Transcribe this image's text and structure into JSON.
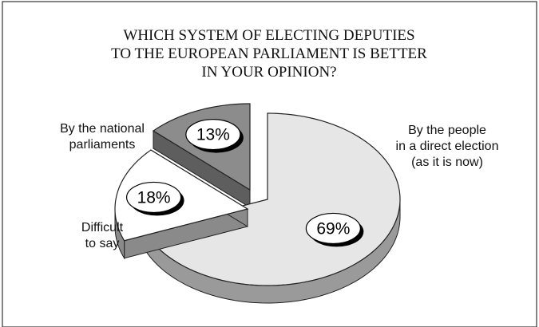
{
  "chart_data": {
    "type": "pie",
    "title": [
      "WHICH SYSTEM OF ELECTING DEPUTIES",
      "TO THE EUROPEAN PARLIAMENT IS BETTER",
      "IN YOUR OPINION?"
    ],
    "slices": [
      {
        "name": [
          "By the people",
          "in a direct election",
          "(as it is now)"
        ],
        "value": 69,
        "label": "69%",
        "color": "#e6e6e6",
        "side_color": "#9a9a9a",
        "exploded": false
      },
      {
        "name": [
          "Difficult",
          "to say"
        ],
        "value": 18,
        "label": "18%",
        "color": "#ffffff",
        "side_color": "#8a8a8a",
        "exploded": true
      },
      {
        "name": [
          "By the national",
          "parliaments"
        ],
        "value": 13,
        "label": "13%",
        "color": "#8c8c8c",
        "side_color": "#5e5e5e",
        "exploded": true
      }
    ]
  }
}
